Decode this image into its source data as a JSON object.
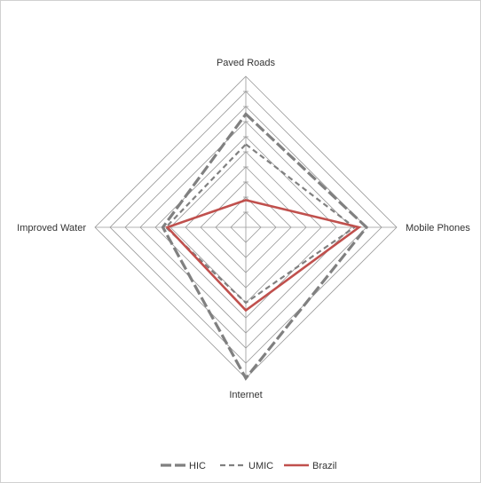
{
  "chart_data": {
    "type": "radar",
    "title": "",
    "axes": [
      "Paved Roads",
      "Mobile Phones",
      "Internet",
      "Improved Water"
    ],
    "rlim": [
      0,
      1
    ],
    "rings": 10,
    "grid": true,
    "legend_position": "bottom",
    "series": [
      {
        "name": "HIC",
        "values": [
          0.75,
          0.8,
          1.0,
          0.55
        ],
        "color": "#808080",
        "style": "solid-thick"
      },
      {
        "name": "UMIC",
        "values": [
          0.55,
          0.72,
          0.5,
          0.53
        ],
        "color": "#808080",
        "style": "dashed"
      },
      {
        "name": "Brazil",
        "values": [
          0.18,
          0.75,
          0.55,
          0.52
        ],
        "color": "#c0504d",
        "style": "solid"
      }
    ]
  },
  "legend": {
    "labels": [
      "HIC",
      "UMIC",
      "Brazil"
    ]
  }
}
